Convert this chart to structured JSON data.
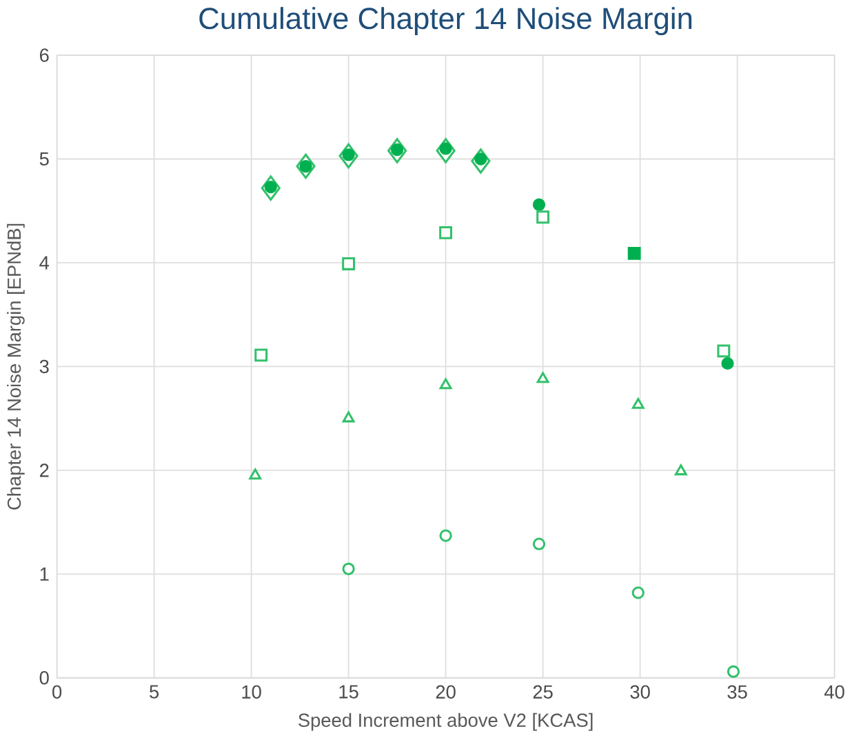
{
  "chart_data": {
    "type": "scatter",
    "title": "Cumulative Chapter 14 Noise Margin",
    "xlabel": "Speed Increment above V2 [KCAS]",
    "ylabel": "Chapter 14 Noise Margin [EPNdB]",
    "xlim": [
      0,
      40
    ],
    "xticks": [
      0,
      5,
      10,
      15,
      20,
      25,
      30,
      35,
      40
    ],
    "ylim": [
      0,
      6
    ],
    "yticks": [
      0,
      1,
      2,
      3,
      4,
      5,
      6
    ],
    "grid": true,
    "series": [
      {
        "color": "#33c06b",
        "marker": "diamond",
        "x": [
          11,
          12.8,
          15,
          17.5,
          20,
          21.8
        ],
        "values": [
          4.72,
          4.93,
          5.03,
          5.08,
          5.08,
          4.98
        ]
      },
      {
        "color": "#00b050",
        "marker": "circle",
        "x": [
          11,
          12.8,
          15,
          17.5,
          20,
          21.8,
          24.8,
          34.5
        ],
        "values": [
          4.73,
          4.93,
          5.04,
          5.09,
          5.1,
          5.0,
          4.56,
          3.03
        ]
      },
      {
        "color": "#33c06b",
        "marker": "square",
        "x": [
          10.5,
          15,
          20,
          25,
          34.3
        ],
        "values": [
          3.11,
          3.99,
          4.29,
          4.44,
          3.15
        ]
      },
      {
        "color": "#00b050",
        "marker": "square",
        "x": [
          29.7
        ],
        "values": [
          4.09
        ]
      },
      {
        "color": "#33c06b",
        "marker": "triangle",
        "x": [
          10.2,
          15,
          20,
          25,
          29.9,
          32.1
        ],
        "values": [
          1.95,
          2.5,
          2.82,
          2.88,
          2.63,
          1.99
        ]
      },
      {
        "color": "#33c06b",
        "marker": "circle",
        "x": [
          15,
          20,
          24.8,
          29.9,
          34.8
        ],
        "values": [
          1.05,
          1.37,
          1.29,
          0.82,
          0.06
        ]
      }
    ]
  }
}
